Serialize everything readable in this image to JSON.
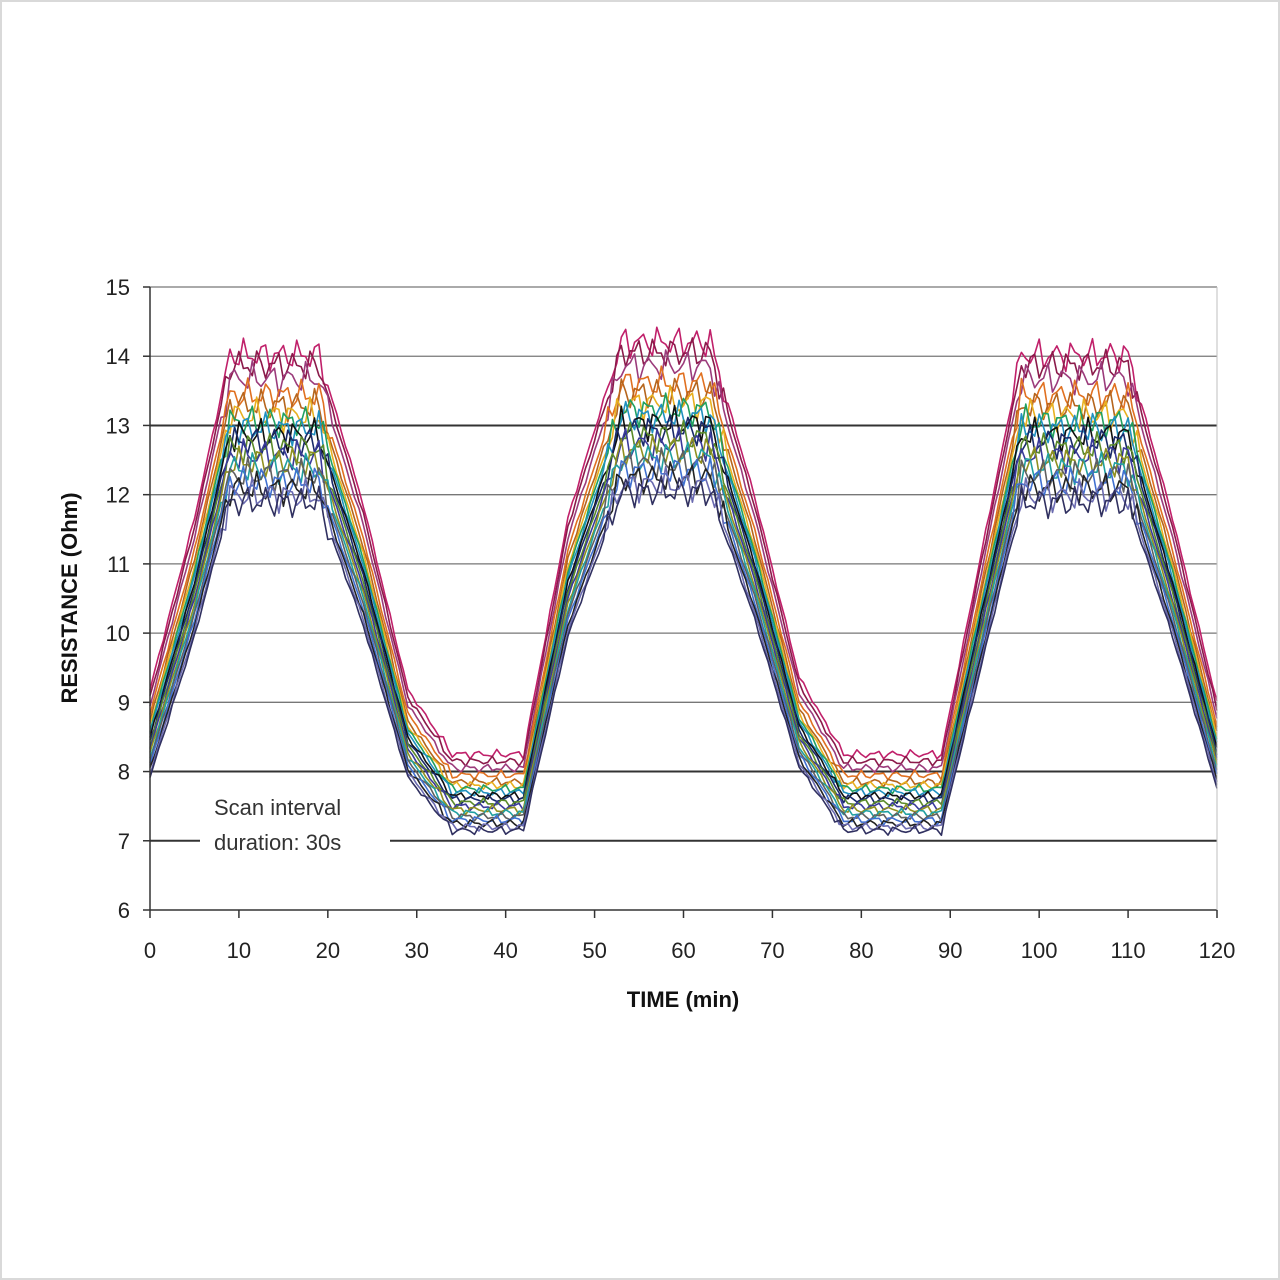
{
  "chart_data": {
    "type": "line",
    "title": "",
    "xlabel": "TIME (min)",
    "ylabel": "RESISTANCE (Ohm)",
    "xlim": [
      0,
      120
    ],
    "ylim": [
      6,
      15
    ],
    "x_ticks": [
      "0",
      "10",
      "20",
      "30",
      "40",
      "50",
      "60",
      "70",
      "80",
      "90",
      "100",
      "110",
      "120"
    ],
    "y_ticks": [
      "6",
      "7",
      "8",
      "9",
      "10",
      "11",
      "12",
      "13",
      "14",
      "15"
    ],
    "grid": "horizontal",
    "legend": "none",
    "annotation": {
      "line1": "Scan interval",
      "line2": "duration: 30s"
    },
    "cycle": {
      "x": [
        0,
        5,
        9,
        19,
        24,
        29,
        34,
        42,
        47,
        53,
        63,
        68,
        73,
        78,
        89,
        94,
        98,
        110,
        115,
        120
      ],
      "shape": [
        0.15,
        0.55,
        0.93,
        0.93,
        0.58,
        0.15,
        0.0,
        0.0,
        0.55,
        0.96,
        0.96,
        0.6,
        0.18,
        0.0,
        0.0,
        0.52,
        0.93,
        0.93,
        0.55,
        0.12
      ]
    },
    "series": [
      {
        "peak": 14.45,
        "trough": 8.25,
        "color": "#c0206a"
      },
      {
        "peak": 14.3,
        "trough": 8.15,
        "color": "#8b1a4a"
      },
      {
        "peak": 14.1,
        "trough": 8.05,
        "color": "#9b3b7b"
      },
      {
        "peak": 13.85,
        "trough": 7.95,
        "color": "#e07020"
      },
      {
        "peak": 13.7,
        "trough": 7.85,
        "color": "#b5651d"
      },
      {
        "peak": 13.55,
        "trough": 7.8,
        "color": "#e8b020"
      },
      {
        "peak": 13.45,
        "trough": 7.75,
        "color": "#20a060"
      },
      {
        "peak": 13.35,
        "trough": 7.7,
        "color": "#2090c0"
      },
      {
        "peak": 13.25,
        "trough": 7.65,
        "color": "#101010"
      },
      {
        "peak": 13.15,
        "trough": 7.6,
        "color": "#1a2a6a"
      },
      {
        "peak": 13.05,
        "trough": 7.55,
        "color": "#5a8a2a"
      },
      {
        "peak": 12.95,
        "trough": 7.5,
        "color": "#3a3a9a"
      },
      {
        "peak": 12.85,
        "trough": 7.45,
        "color": "#909020"
      },
      {
        "peak": 12.75,
        "trough": 7.4,
        "color": "#20a0a0"
      },
      {
        "peak": 12.65,
        "trough": 7.35,
        "color": "#606060"
      },
      {
        "peak": 12.55,
        "trough": 7.3,
        "color": "#4070d0"
      },
      {
        "peak": 12.45,
        "trough": 7.25,
        "color": "#222222"
      },
      {
        "peak": 12.35,
        "trough": 7.2,
        "color": "#6a6ab0"
      },
      {
        "peak": 12.25,
        "trough": 7.15,
        "color": "#303060"
      }
    ]
  }
}
